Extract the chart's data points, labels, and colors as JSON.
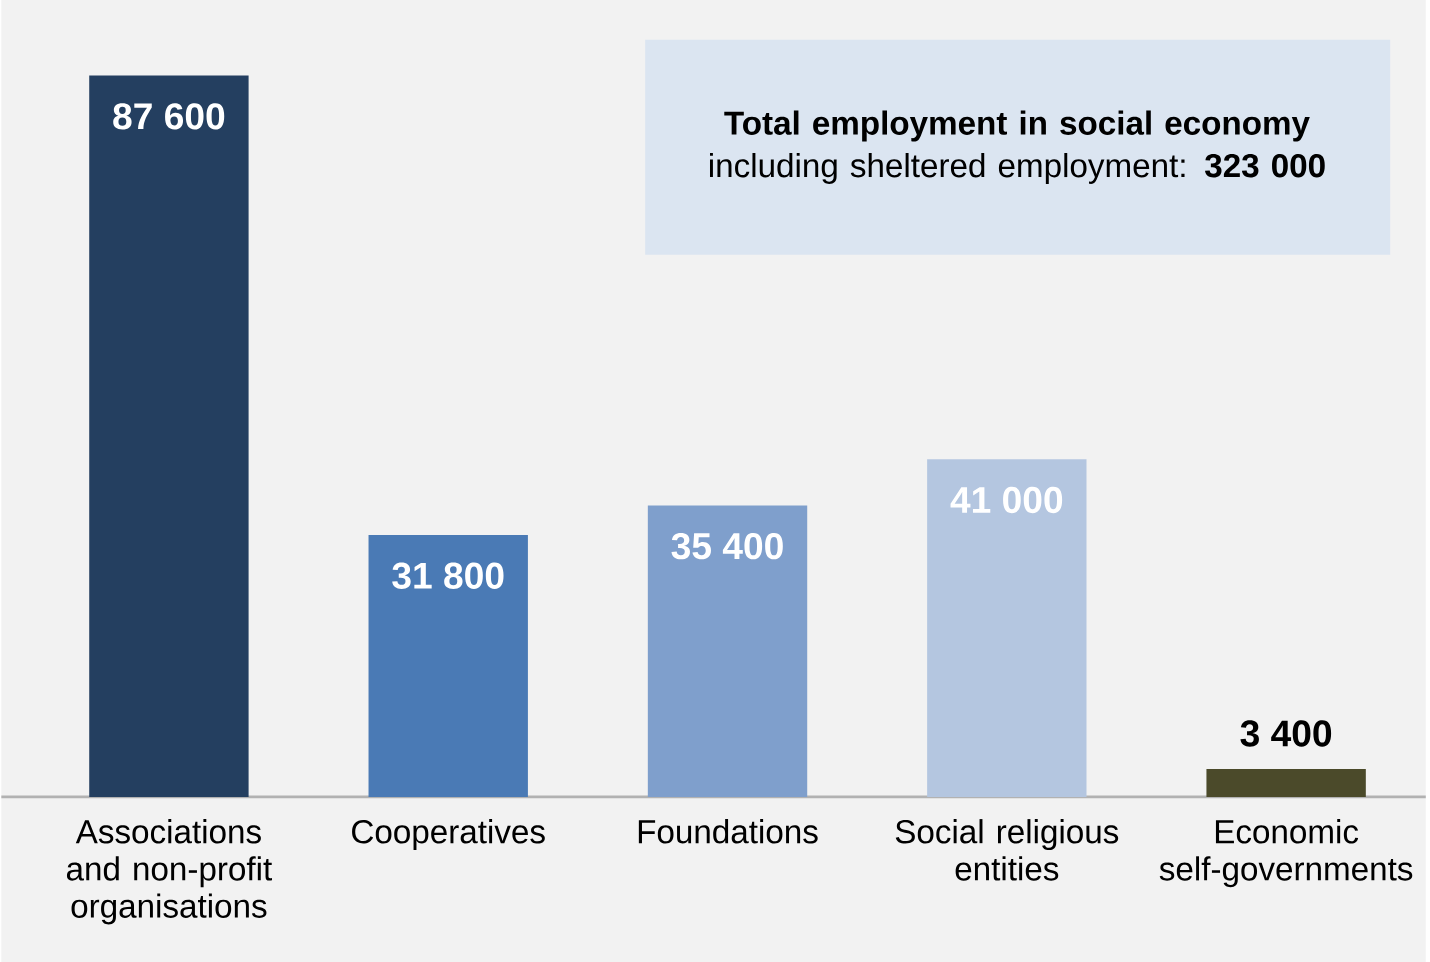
{
  "chart_data": {
    "type": "bar",
    "categories": [
      "Associations and non-profit organisations",
      "Cooperatives",
      "Foundations",
      "Social religious entities",
      "Economic self-governments"
    ],
    "values": [
      87600,
      31800,
      35400,
      41000,
      3400
    ],
    "value_labels": [
      "87 600",
      "31 800",
      "35 400",
      "41 000",
      "3 400"
    ],
    "colors": [
      "#243f60",
      "#4a7ab5",
      "#7f9fcc",
      "#b4c6e0",
      "#4b4a2a"
    ],
    "annotations": [
      "**Total employment in social economy** including sheltered employment: **323 000**"
    ]
  }
}
